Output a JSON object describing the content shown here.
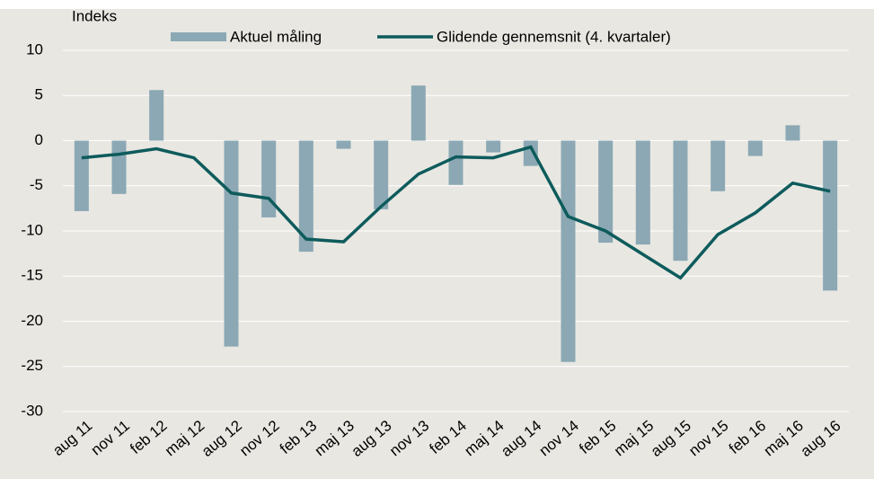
{
  "chart_data": {
    "type": "bar_line",
    "y_label": "Indeks",
    "categories": [
      "aug 11",
      "nov 11",
      "feb 12",
      "maj 12",
      "aug 12",
      "nov 12",
      "feb 13",
      "maj 13",
      "aug 13",
      "nov 13",
      "feb 14",
      "maj 14",
      "aug 14",
      "nov 14",
      "feb 15",
      "maj 15",
      "aug 15",
      "nov 15",
      "feb 16",
      "maj 16",
      "aug 16"
    ],
    "series": [
      {
        "name": "Aktuel måling",
        "type": "bar",
        "color": "#8ba8b4",
        "values": [
          -7.8,
          -5.9,
          5.6,
          0,
          -22.8,
          -8.5,
          -12.3,
          -0.9,
          -7.6,
          6.1,
          -4.9,
          -1.3,
          -2.8,
          -24.5,
          -11.3,
          -11.5,
          -13.3,
          -5.6,
          -1.7,
          1.7,
          -16.6
        ]
      },
      {
        "name": "Glidende gennemsnit (4. kvartaler)",
        "type": "line",
        "color": "#0e5b5c",
        "values": [
          -1.9,
          -1.5,
          -0.9,
          -1.9,
          -5.8,
          -6.4,
          -10.9,
          -11.2,
          -7.3,
          -3.7,
          -1.8,
          -1.9,
          -0.7,
          -8.4,
          -10.0,
          -12.6,
          -15.2,
          -10.4,
          -8.0,
          -4.7,
          -5.6
        ]
      }
    ],
    "ylim": [
      -30,
      10
    ],
    "yticks": [
      -30,
      -25,
      -20,
      -15,
      -10,
      -5,
      0,
      5,
      10
    ],
    "grid": true
  }
}
